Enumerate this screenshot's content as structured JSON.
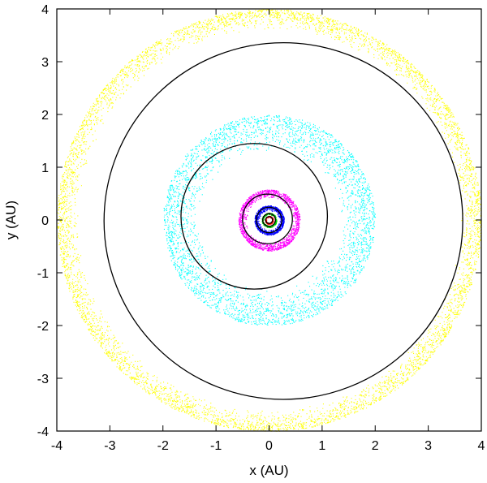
{
  "chart_data": {
    "type": "scatter",
    "title": "",
    "xlabel": "x (AU)",
    "ylabel": "y (AU)",
    "xlim": [
      -4,
      4
    ],
    "ylim": [
      -4,
      4
    ],
    "xticks": [
      -4,
      -3,
      -2,
      -1,
      0,
      1,
      2,
      3,
      4
    ],
    "yticks": [
      -4,
      -3,
      -2,
      -1,
      0,
      1,
      2,
      3,
      4
    ],
    "grid": false,
    "legend": "none",
    "series": [
      {
        "kind": "particle_ring",
        "color": "#ffff00",
        "center": [
          0.0,
          0.0
        ],
        "r_inner": 3.6,
        "r_outer": 4.0,
        "count": 5200
      },
      {
        "kind": "particle_ring",
        "color": "#00ffff",
        "center": [
          0.0,
          0.0
        ],
        "r_inner": 1.3,
        "r_outer": 2.0,
        "count": 3400
      },
      {
        "kind": "particle_ring",
        "color": "#ff00ff",
        "center": [
          0.0,
          0.0
        ],
        "r_inner": 0.42,
        "r_outer": 0.58,
        "count": 1400
      },
      {
        "kind": "particle_ring",
        "color": "#0000ff",
        "center": [
          0.0,
          0.0
        ],
        "r_inner": 0.18,
        "r_outer": 0.28,
        "count": 900
      },
      {
        "kind": "particle_ring",
        "color": "#00cc00",
        "center": [
          0.0,
          0.0
        ],
        "r_inner": 0.1,
        "r_outer": 0.14,
        "count": 250
      },
      {
        "kind": "particle_ring",
        "color": "#ff0000",
        "center": [
          0.0,
          0.0
        ],
        "r_inner": 0.05,
        "r_outer": 0.08,
        "count": 160
      },
      {
        "kind": "orbit",
        "color": "#000000",
        "center": [
          0.27,
          -0.02
        ],
        "radius": 3.38
      },
      {
        "kind": "orbit",
        "color": "#000000",
        "center": [
          -0.28,
          0.07
        ],
        "radius": 1.38
      },
      {
        "kind": "orbit",
        "color": "#000000",
        "center": [
          -0.03,
          0.02
        ],
        "radius": 0.47
      },
      {
        "kind": "orbit",
        "color": "#000000",
        "center": [
          0.0,
          0.0
        ],
        "radius": 0.24
      },
      {
        "kind": "orbit",
        "color": "#000000",
        "center": [
          0.0,
          0.0
        ],
        "radius": 0.12
      },
      {
        "kind": "orbit",
        "color": "#000000",
        "center": [
          0.0,
          0.0
        ],
        "radius": 0.065
      }
    ]
  }
}
